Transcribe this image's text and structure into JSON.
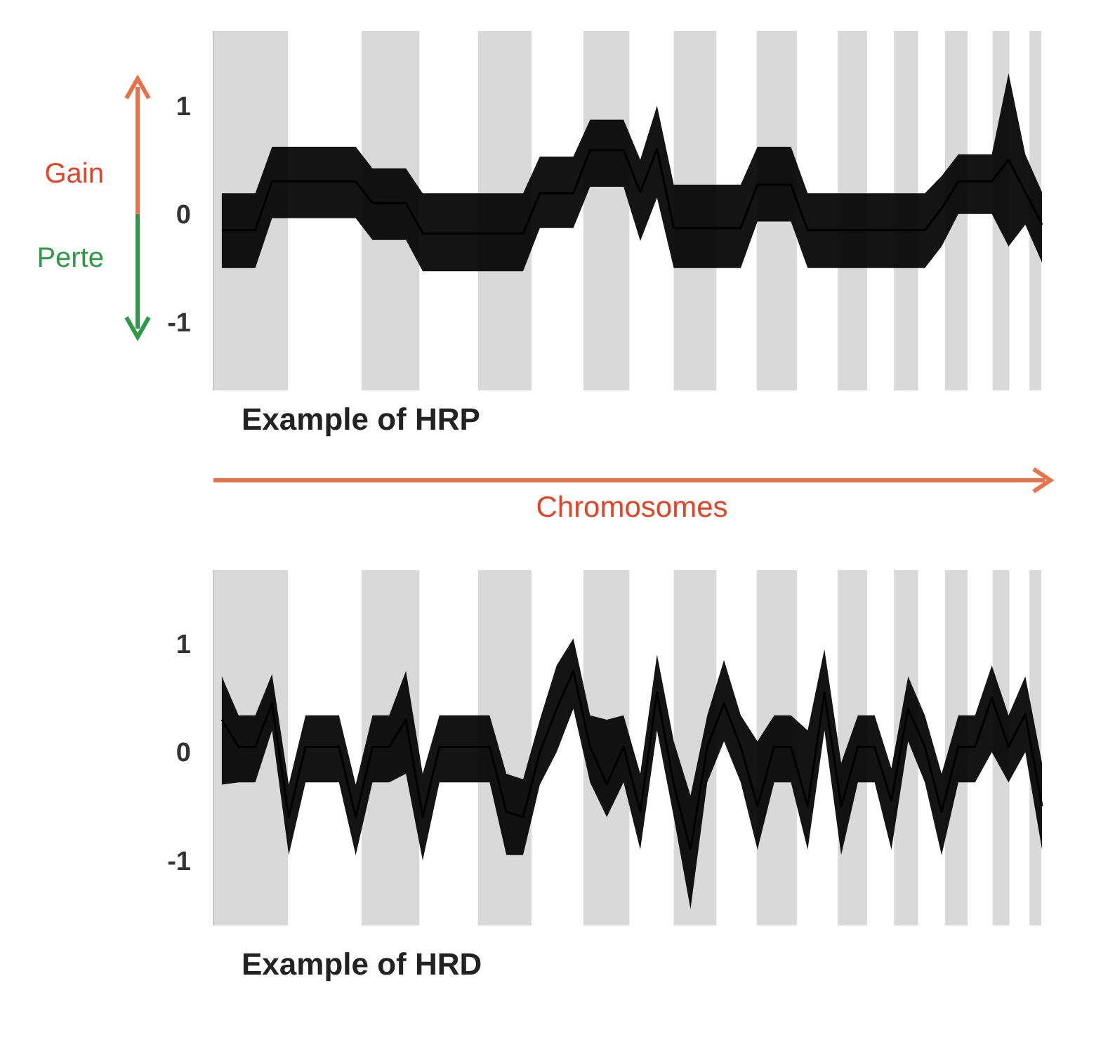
{
  "chart_data": [
    {
      "type": "line",
      "title": "Example of HRP",
      "annotations": [
        "Gain",
        "Perte",
        "Chromosomes"
      ],
      "ylim": [
        -1.63,
        1.69
      ],
      "yticks": [
        -1,
        0,
        1
      ],
      "tick_labels": "y",
      "categories": [
        null,
        null,
        null,
        null,
        null,
        null,
        null,
        null,
        null,
        null,
        null,
        null,
        null,
        null,
        null,
        null,
        null,
        null,
        null,
        null,
        null,
        null,
        null,
        null,
        null,
        null,
        null,
        null,
        null,
        null,
        null,
        null,
        null,
        null,
        null,
        null,
        null,
        null,
        null,
        null,
        null,
        null,
        null,
        null,
        null,
        null,
        null,
        null,
        null,
        null
      ],
      "series": [
        {
          "color": "#000000",
          "values": [
            -0.15,
            -0.15,
            -0.15,
            0.3,
            0.3,
            0.3,
            0.3,
            0.3,
            0.3,
            0.1,
            0.1,
            0.1,
            -0.18,
            -0.18,
            -0.18,
            -0.18,
            -0.18,
            -0.18,
            -0.18,
            0.19,
            0.19,
            0.19,
            0.59,
            0.59,
            0.59,
            0.2,
            0.6,
            -0.13,
            -0.13,
            -0.13,
            -0.13,
            -0.13,
            0.27,
            0.27,
            0.27,
            -0.15,
            -0.15,
            -0.15,
            -0.15,
            -0.15,
            -0.15,
            -0.15,
            -0.15,
            0.05,
            0.3,
            0.3,
            0.3,
            0.5,
            0.2,
            -0.1
          ],
          "lower": [
            -0.5,
            -0.5,
            -0.5,
            -0.04,
            -0.04,
            -0.04,
            -0.04,
            -0.04,
            -0.04,
            -0.24,
            -0.24,
            -0.24,
            -0.53,
            -0.53,
            -0.53,
            -0.53,
            -0.53,
            -0.53,
            -0.53,
            -0.13,
            -0.13,
            -0.13,
            0.25,
            0.25,
            0.25,
            -0.25,
            0.15,
            -0.5,
            -0.5,
            -0.5,
            -0.5,
            -0.5,
            -0.07,
            -0.07,
            -0.07,
            -0.5,
            -0.5,
            -0.5,
            -0.5,
            -0.5,
            -0.5,
            -0.5,
            -0.5,
            -0.3,
            0,
            0,
            0,
            -0.3,
            -0.1,
            -0.45
          ],
          "upper": [
            0.19,
            0.19,
            0.19,
            0.62,
            0.62,
            0.62,
            0.62,
            0.62,
            0.62,
            0.42,
            0.42,
            0.42,
            0.19,
            0.19,
            0.19,
            0.19,
            0.19,
            0.19,
            0.19,
            0.53,
            0.53,
            0.53,
            0.87,
            0.87,
            0.87,
            0.5,
            1.0,
            0.27,
            0.27,
            0.27,
            0.27,
            0.27,
            0.62,
            0.62,
            0.62,
            0.19,
            0.19,
            0.19,
            0.19,
            0.19,
            0.19,
            0.19,
            0.19,
            0.35,
            0.55,
            0.55,
            0.55,
            1.3,
            0.55,
            0.2
          ]
        }
      ]
    },
    {
      "type": "line",
      "title": "Example of HRD",
      "ylim": [
        -1.6,
        1.68
      ],
      "yticks": [
        -1,
        0,
        1
      ],
      "tick_labels": "y",
      "categories": [
        null,
        null,
        null,
        null,
        null,
        null,
        null,
        null,
        null,
        null,
        null,
        null,
        null,
        null,
        null,
        null,
        null,
        null,
        null,
        null,
        null,
        null,
        null,
        null,
        null,
        null,
        null,
        null,
        null,
        null,
        null,
        null,
        null,
        null,
        null,
        null,
        null,
        null,
        null,
        null,
        null,
        null,
        null,
        null,
        null,
        null,
        null,
        null,
        null,
        null
      ],
      "series": [
        {
          "color": "#000000",
          "values": [
            0.3,
            0.05,
            0.05,
            0.45,
            -0.6,
            0.05,
            0.05,
            0.05,
            -0.6,
            0.05,
            0.05,
            0.3,
            -0.6,
            0.05,
            0.05,
            0.05,
            0.05,
            -0.55,
            -0.6,
            0.0,
            0.4,
            0.75,
            0.05,
            -0.3,
            0.05,
            -0.55,
            0.55,
            -0.3,
            -0.9,
            0.05,
            0.45,
            0.05,
            -0.5,
            0.05,
            0.05,
            -0.5,
            0.55,
            -0.5,
            0.05,
            0.05,
            -0.45,
            0.4,
            0.05,
            -0.55,
            0.05,
            0.05,
            0.5,
            0.05,
            0.35,
            -0.5
          ],
          "lower": [
            -0.3,
            -0.28,
            -0.28,
            0.2,
            -0.95,
            -0.28,
            -0.28,
            -0.28,
            -0.95,
            -0.28,
            -0.28,
            -0.2,
            -1.0,
            -0.28,
            -0.28,
            -0.28,
            -0.28,
            -0.95,
            -0.95,
            -0.3,
            0,
            0.4,
            -0.28,
            -0.6,
            -0.28,
            -0.9,
            0.2,
            -0.6,
            -1.45,
            -0.28,
            0.1,
            -0.28,
            -0.9,
            -0.28,
            -0.28,
            -0.9,
            0.2,
            -0.95,
            -0.28,
            -0.28,
            -0.9,
            0.1,
            -0.28,
            -0.95,
            -0.28,
            -0.28,
            0,
            -0.28,
            0,
            -0.9
          ],
          "upper": [
            0.7,
            0.34,
            0.34,
            0.72,
            -0.3,
            0.34,
            0.34,
            0.34,
            -0.3,
            0.34,
            0.34,
            0.75,
            -0.2,
            0.34,
            0.34,
            0.34,
            0.34,
            -0.2,
            -0.25,
            0.3,
            0.8,
            1.05,
            0.34,
            0.3,
            0.34,
            -0.2,
            0.9,
            0.1,
            -0.4,
            0.34,
            0.85,
            0.34,
            0.1,
            0.34,
            0.34,
            0.2,
            0.95,
            -0.1,
            0.34,
            0.34,
            -0.15,
            0.7,
            0.34,
            -0.2,
            0.34,
            0.34,
            0.8,
            0.34,
            0.7,
            -0.1
          ]
        }
      ]
    }
  ]
}
